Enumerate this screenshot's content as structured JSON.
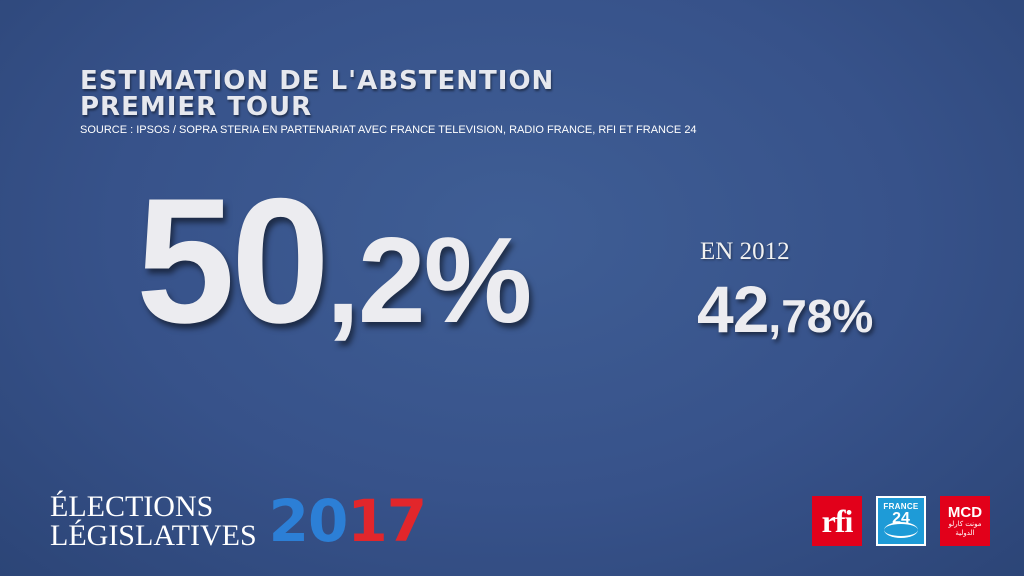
{
  "header": {
    "title_line1": "ESTIMATION DE L'ABSTENTION",
    "title_line2": "PREMIER TOUR",
    "source": "SOURCE : IPSOS / SOPRA STERIA EN PARTENARIAT AVEC FRANCE TELEVISION, RADIO FRANCE, RFI ET FRANCE 24"
  },
  "main_stat": {
    "integer_part": "50",
    "decimal_part": ",2%"
  },
  "previous": {
    "label": "EN 2012",
    "integer_part": "42",
    "decimal_part": ",78%"
  },
  "branding": {
    "line1": "ÉLECTIONS",
    "line2": "LÉGISLATIVES",
    "year_part1": "20",
    "year_part2": "17",
    "year_color_1": "#2c7fd6",
    "year_color_2": "#e2262b"
  },
  "logos": {
    "rfi": {
      "text": "rfi",
      "icon": "rfi-logo",
      "color": "#e2001a"
    },
    "france24": {
      "line1": "FRANCE",
      "line2": "24",
      "icon": "france24-logo",
      "color": "#1e9bd7"
    },
    "mcd": {
      "line1": "MCD",
      "line2": "مونت كارلو الدولية",
      "icon": "mcd-logo",
      "color": "#e2001a"
    }
  },
  "colors": {
    "background": "#37528a",
    "text": "#ececf0"
  }
}
